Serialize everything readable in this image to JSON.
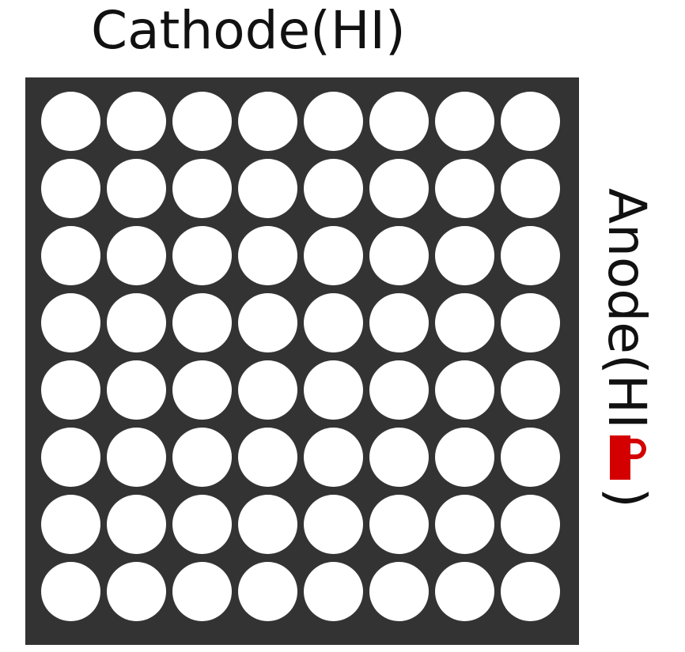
{
  "labels": {
    "cathode": "Cathode(HI)",
    "anode_prefix": "Anode(HI",
    "anode_suffix": ")"
  },
  "matrix": {
    "rows": 8,
    "columns": 8
  },
  "colors": {
    "background": "#ffffff",
    "panel": "#333333",
    "led": "#ffffff",
    "text": "#111111",
    "lock_accent": "#d40000"
  },
  "icons": {
    "lock": "lock-icon"
  }
}
